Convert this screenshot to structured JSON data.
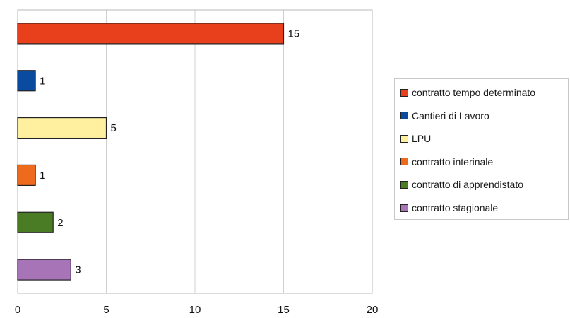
{
  "chart_data": {
    "type": "bar",
    "orientation": "horizontal",
    "categories": [
      "contratto tempo determinato",
      "Cantieri di Lavoro",
      "LPU",
      "contratto interinale",
      "contratto di apprendistato",
      "contratto stagionale"
    ],
    "values": [
      15,
      1,
      5,
      1,
      2,
      3
    ],
    "colors": [
      "#e8401c",
      "#0a4ba0",
      "#fff0a0",
      "#ee6a1c",
      "#4a7c26",
      "#a874b8"
    ],
    "xlim": [
      0,
      20
    ],
    "xticks": [
      0,
      5,
      10,
      15,
      20
    ],
    "grid": true,
    "data_labels": true,
    "legend": {
      "placement": "right",
      "entries": [
        "contratto tempo determinato",
        "Cantieri di Lavoro",
        "LPU",
        "contratto interinale",
        "contratto di apprendistato",
        "contratto stagionale"
      ]
    }
  }
}
